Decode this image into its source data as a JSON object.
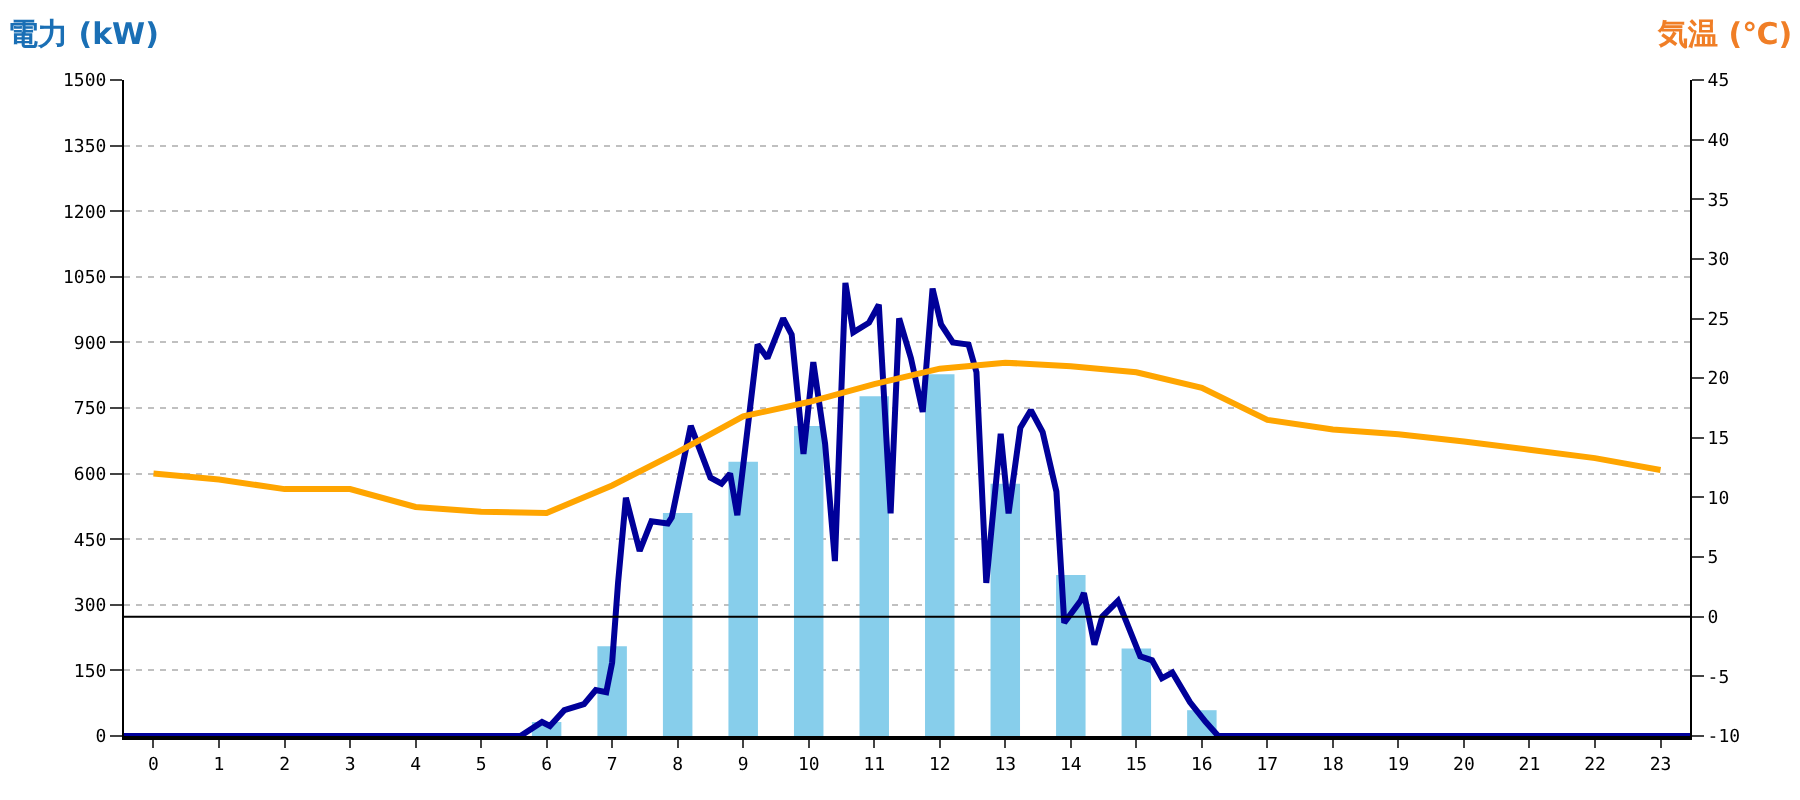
{
  "chart_data": {
    "type": "bar",
    "ylabel": "電力 (kW)",
    "y2label": "気温 (℃)",
    "x": [
      0,
      1,
      2,
      3,
      4,
      5,
      6,
      7,
      8,
      9,
      10,
      11,
      12,
      13,
      14,
      15,
      16,
      17,
      18,
      19,
      20,
      21,
      22,
      23
    ],
    "series": [
      {
        "color": "#87ceeb",
        "values": [
          0,
          0,
          0,
          0,
          0,
          0,
          32,
          205,
          510,
          627,
          709,
          777,
          827,
          577,
          368,
          200,
          59,
          0,
          0,
          0,
          0,
          0,
          0,
          0
        ]
      },
      {
        "type": "line",
        "color": "#000099",
        "x": [
          -0.45,
          5.6,
          5.93,
          6.05,
          6.27,
          6.57,
          6.75,
          6.91,
          7.0,
          7.09,
          7.21,
          7.42,
          7.6,
          7.85,
          7.91,
          8.2,
          8.5,
          8.67,
          8.8,
          8.91,
          9.22,
          9.37,
          9.61,
          9.74,
          9.92,
          10.07,
          10.25,
          10.4,
          10.56,
          10.68,
          10.92,
          11.07,
          11.25,
          11.38,
          11.56,
          11.74,
          11.89,
          12.02,
          12.2,
          12.44,
          12.56,
          12.71,
          12.93,
          13.05,
          13.23,
          13.39,
          13.57,
          13.78,
          13.9,
          14.15,
          14.2,
          14.36,
          14.48,
          14.72,
          15.06,
          15.24,
          15.39,
          15.55,
          15.82,
          16.06,
          16.25,
          23.45
        ],
        "values": [
          0,
          0,
          32,
          23,
          59,
          73,
          105,
          100,
          168,
          350,
          545,
          423,
          491,
          486,
          500,
          709,
          591,
          577,
          600,
          505,
          895,
          864,
          955,
          918,
          645,
          855,
          668,
          400,
          1036,
          923,
          945,
          986,
          509,
          955,
          864,
          741,
          1023,
          941,
          900,
          895,
          832,
          350,
          691,
          509,
          705,
          745,
          695,
          559,
          259,
          309,
          327,
          209,
          273,
          309,
          182,
          173,
          132,
          145,
          77,
          32,
          0,
          0
        ]
      },
      {
        "type": "line",
        "axis": "y2",
        "color": "#ffa500",
        "values": [
          12,
          11.5,
          10.7,
          10.7,
          9.2,
          8.8,
          8.7,
          11,
          13.8,
          16.8,
          18,
          19.5,
          20.8,
          21.3,
          21,
          20.5,
          19.2,
          16.5,
          15.7,
          15.3,
          14.7,
          14,
          13.3,
          12.3
        ]
      }
    ],
    "xlim": [
      -0.45,
      23.45
    ],
    "xticks": [
      0,
      1,
      2,
      3,
      4,
      5,
      6,
      7,
      8,
      9,
      10,
      11,
      12,
      13,
      14,
      15,
      16,
      17,
      18,
      19,
      20,
      21,
      22,
      23
    ],
    "ylim": [
      0,
      1500
    ],
    "yticks": [
      0,
      150,
      300,
      450,
      600,
      750,
      900,
      1050,
      1200,
      1350,
      1500
    ],
    "y2lim": [
      -10,
      45
    ],
    "y2ticks": [
      -10,
      -5,
      0,
      5,
      10,
      15,
      20,
      25,
      30,
      35,
      40,
      45
    ],
    "ref_lines": [
      {
        "axis": "y2",
        "value": 0,
        "color": "#000000"
      }
    ],
    "grid": "y",
    "line_style": "solid",
    "marker": "none"
  }
}
